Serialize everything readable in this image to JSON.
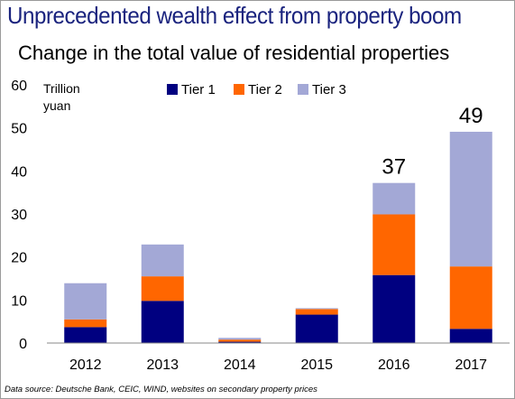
{
  "headline": "Unprecedented wealth effect from property boom",
  "source_note": "Data source: Deutsche Bank, CEIC, WIND, websites on secondary property prices",
  "chart_data": {
    "type": "bar",
    "stacked": true,
    "title": "Change in the total value of residential properties",
    "ylabel_lines": [
      "Trillion",
      "yuan"
    ],
    "categories": [
      "2012",
      "2013",
      "2014",
      "2015",
      "2016",
      "2017"
    ],
    "series": [
      {
        "name": "Tier 1",
        "color": "#000080",
        "values": [
          3.7,
          9.8,
          0.3,
          6.6,
          15.8,
          3.3
        ]
      },
      {
        "name": "Tier 2",
        "color": "#ff6600",
        "values": [
          1.8,
          5.7,
          0.5,
          1.3,
          14.1,
          14.5
        ]
      },
      {
        "name": "Tier 3",
        "color": "#a3a8d6",
        "values": [
          8.4,
          7.4,
          0.4,
          0.2,
          7.3,
          31.3
        ]
      }
    ],
    "annotations": [
      {
        "category": "2016",
        "text": "37"
      },
      {
        "category": "2017",
        "text": "49"
      }
    ],
    "yticks": [
      0,
      10,
      20,
      30,
      40,
      50,
      60
    ],
    "ylim": [
      0,
      60
    ],
    "grid": false,
    "legend_position": "top"
  }
}
